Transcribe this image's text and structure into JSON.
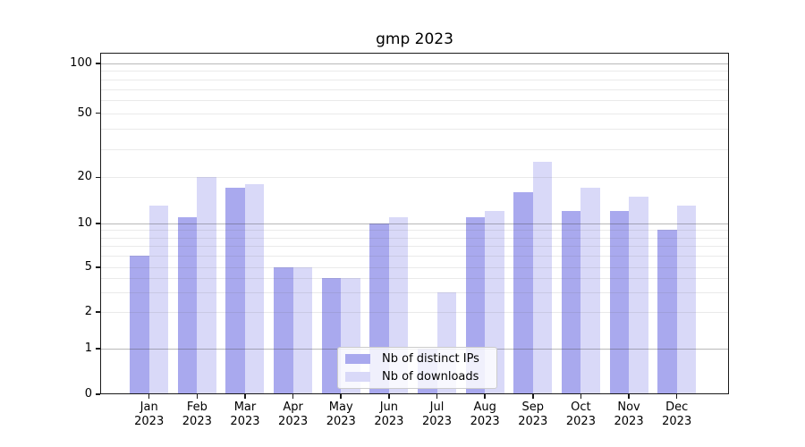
{
  "window": {
    "background_color": "#ffffff"
  },
  "chart_data": {
    "type": "bar",
    "title": "gmp 2023",
    "categories": [
      "Jan",
      "Feb",
      "Mar",
      "Apr",
      "May",
      "Jun",
      "Jul",
      "Aug",
      "Sep",
      "Oct",
      "Nov",
      "Dec"
    ],
    "category_year": "2023",
    "series": [
      {
        "name": "Nb of distinct IPs",
        "color": "#a9a9ee",
        "values": [
          6,
          11,
          17,
          5,
          4,
          10,
          1,
          11,
          16,
          12,
          12,
          9
        ]
      },
      {
        "name": "Nb of downloads",
        "color": "#d9d9f8",
        "values": [
          13,
          20,
          18,
          5,
          4,
          11,
          3,
          12,
          25,
          17,
          15,
          13
        ]
      }
    ],
    "xlabel": "",
    "ylabel": "",
    "yscale": "log-like (linear below 1)",
    "ylim": [
      0,
      116
    ],
    "yticks": [
      0,
      1,
      2,
      5,
      10,
      20,
      50,
      100
    ],
    "major_gridlines": [
      1,
      10,
      100
    ],
    "minor_gridlines": [
      2,
      3,
      4,
      5,
      6,
      7,
      8,
      9,
      20,
      30,
      40,
      50,
      60,
      70,
      80,
      90
    ],
    "grid": "on",
    "legend_position": "lower center",
    "axis_color": "#1a1a1a",
    "text_color": "#000000"
  }
}
